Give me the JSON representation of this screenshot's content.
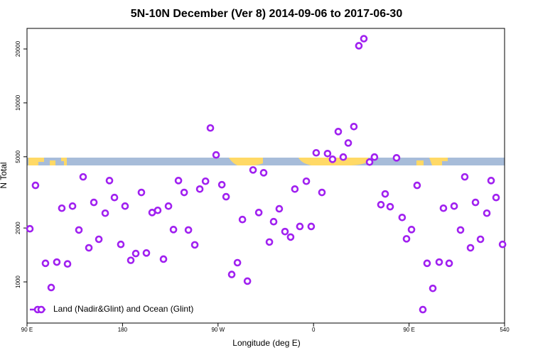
{
  "chart_data": {
    "type": "scatter",
    "title": "5N-10N December (Ver 8)   2014-09-06 to 2017-06-30",
    "x_label": "Longitude (deg E)",
    "y_label": "N Total",
    "log_y": true,
    "legend_position": "bottom-left",
    "xlim": [
      90,
      540
    ],
    "ylim": [
      589,
      26060
    ],
    "xticks": [
      {
        "value": 90,
        "label": "90 E"
      },
      180,
      {
        "value": 270,
        "label": "90 W"
      },
      {
        "value": 360,
        "label": "0"
      },
      {
        "value": 450,
        "label": "90 E"
      },
      540
    ],
    "yticks": [
      1000,
      2000,
      5000,
      10000,
      20000
    ],
    "series": [
      {
        "name": "Land (Nadir&Glint) and Ocean (Glint)",
        "color": "#a020f0",
        "x": [
          92.7,
          98.0,
          107.4,
          112.8,
          118.1,
          122.8,
          128.2,
          132.9,
          138.9,
          142.9,
          148.3,
          153.0,
          157.7,
          163.7,
          167.7,
          172.4,
          178.4,
          182.4,
          187.8,
          192.5,
          197.8,
          202.5,
          207.9,
          213.2,
          218.6,
          223.3,
          228.0,
          232.7,
          238.1,
          242.1,
          248.1,
          252.8,
          258.2,
          262.8,
          268.2,
          273.6,
          277.6,
          282.9,
          288.3,
          293.0,
          297.7,
          303.0,
          308.4,
          313.0,
          318.4,
          322.4,
          327.7,
          333.1,
          338.4,
          342.4,
          347.1,
          353.2,
          357.8,
          362.5,
          367.9,
          373.2,
          377.9,
          383.3,
          388.0,
          392.7,
          398.0,
          402.7,
          407.4,
          412.8,
          417.4,
          423.5,
          427.5,
          432.2,
          438.2,
          443.5,
          447.6,
          452.3,
          457.6,
          463.0,
          467.0,
          472.4,
          478.4,
          482.4,
          487.8,
          492.5,
          498.5,
          502.5,
          507.9,
          512.6,
          517.3,
          523.3,
          527.3,
          532.0,
          538.1
        ],
        "values": [
          1980,
          3460,
          1270,
          930,
          1290,
          2580,
          1260,
          2650,
          1950,
          3860,
          1550,
          2780,
          1730,
          2420,
          3680,
          2960,
          1620,
          2650,
          1320,
          1440,
          3160,
          1450,
          2440,
          2510,
          1340,
          2650,
          1960,
          3680,
          3160,
          1950,
          1610,
          3300,
          3650,
          7240,
          5120,
          3490,
          2990,
          1100,
          1280,
          2230,
          1010,
          4220,
          2440,
          4070,
          1670,
          2170,
          2560,
          1910,
          1780,
          3300,
          2040,
          3650,
          2040,
          5260,
          3160,
          5210,
          4840,
          6910,
          4980,
          5970,
          7370,
          20840,
          22830,
          4670,
          4980,
          2700,
          3100,
          2630,
          4930,
          2290,
          1740,
          1960,
          3460,
          700,
          1270,
          920,
          1290,
          2580,
          1270,
          2650,
          1950,
          3860,
          1550,
          2780,
          1730,
          2420,
          3680,
          2960,
          1620
        ]
      }
    ]
  }
}
